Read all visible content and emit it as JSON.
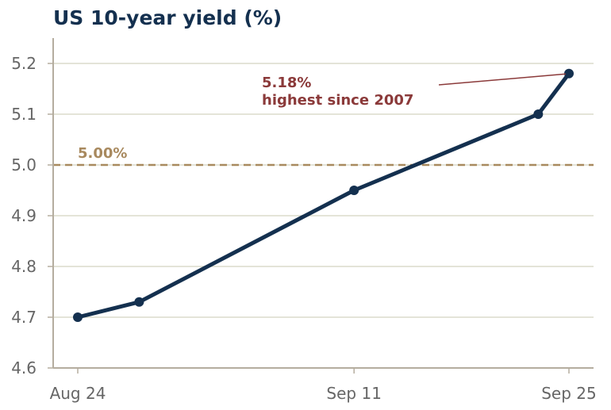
{
  "chart_data": {
    "type": "line",
    "title": "US 10-year yield (%)",
    "xlabel": "",
    "ylabel": "",
    "x": [
      "2023-08-24",
      "2023-08-28",
      "2023-09-11",
      "2023-09-23",
      "2023-09-25"
    ],
    "series": [
      {
        "values": [
          4.7,
          4.73,
          4.95,
          5.1,
          5.18
        ]
      }
    ],
    "x_ticks": [
      {
        "date": "2023-08-24",
        "label": "Aug 24"
      },
      {
        "date": "2023-09-11",
        "label": "Sep 11"
      },
      {
        "date": "2023-09-25",
        "label": "Sep 25"
      }
    ],
    "ylim": [
      4.6,
      5.25
    ],
    "y_ticks": [
      4.6,
      4.7,
      4.8,
      4.9,
      5.0,
      5.1,
      5.2
    ],
    "grid": "horizontal",
    "reference_line": {
      "value": 5.0,
      "label": "5.00%"
    },
    "annotation": {
      "line1": "5.18%",
      "line2": "highest since 2007",
      "target_date": "2023-09-25",
      "target_value": 5.18
    },
    "colors": {
      "line": "#14304f",
      "reference": "#a8895e",
      "annotation": "#8b3a3a",
      "grid": "#dcdccc",
      "axis": "#b5ad9f",
      "tick_text": "#666666",
      "title": "#14304f"
    }
  }
}
